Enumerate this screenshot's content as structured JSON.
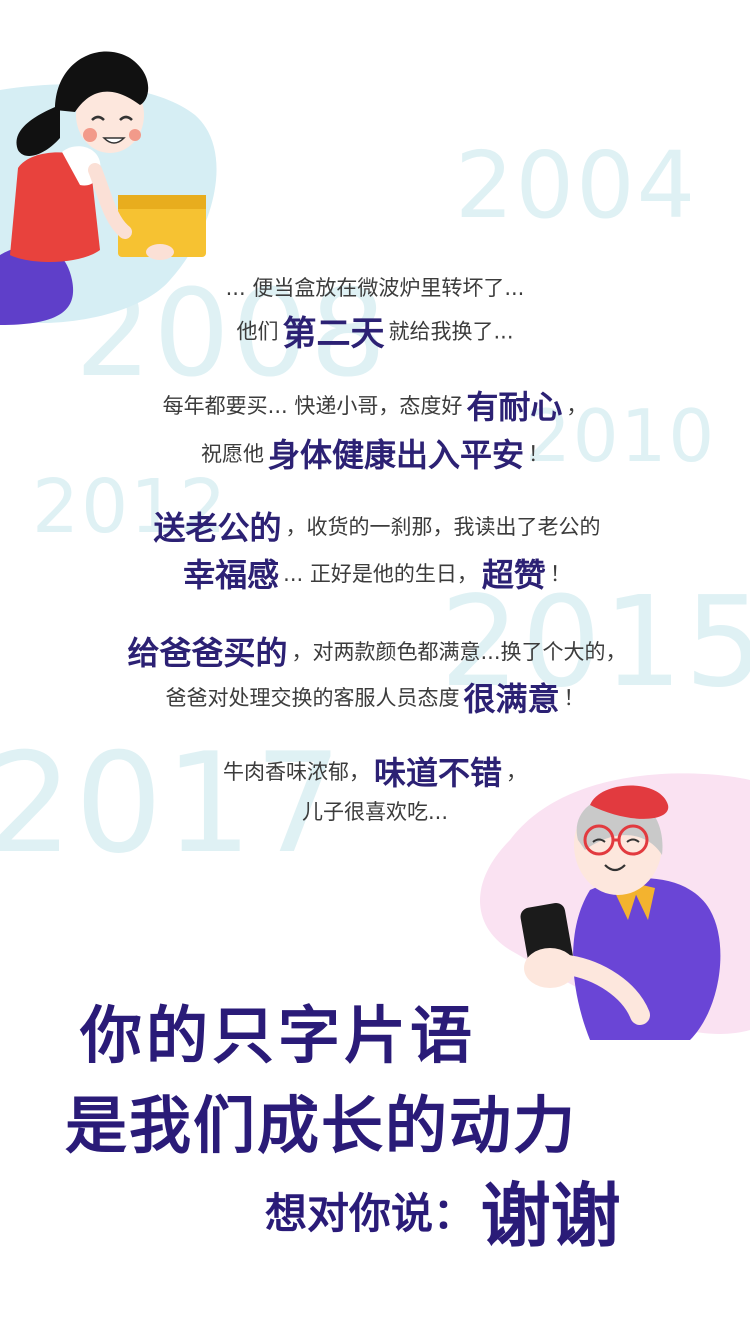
{
  "years": [
    "2004",
    "2008",
    "2010",
    "2012",
    "2015",
    "2017"
  ],
  "reviews": [
    {
      "segments": [
        {
          "text": "... 便当盒放在微波炉里转坏了...",
          "hl": false
        }
      ]
    },
    {
      "segments": [
        {
          "text": "他们",
          "hl": false
        },
        {
          "text": "第二天",
          "hl": true
        },
        {
          "text": "就给我换了...",
          "hl": false
        }
      ]
    },
    {
      "segments": [
        {
          "text": "每年都要买... 快递小哥，态度好",
          "hl": false
        },
        {
          "text": "有耐心",
          "hl": true
        },
        {
          "text": "，",
          "hl": false
        }
      ]
    },
    {
      "segments": [
        {
          "text": "祝愿他",
          "hl": false
        },
        {
          "text": "身体健康出入平安",
          "hl": true
        },
        {
          "text": "！",
          "hl": false
        }
      ]
    },
    {
      "segments": [
        {
          "text": "送老公的",
          "hl": true
        },
        {
          "text": "，收货的一刹那，我读出了老公的",
          "hl": false
        }
      ]
    },
    {
      "segments": [
        {
          "text": "幸福感",
          "hl": true
        },
        {
          "text": "... 正好是他的生日，",
          "hl": false
        },
        {
          "text": "超赞",
          "hl": true
        },
        {
          "text": "！",
          "hl": false
        }
      ]
    },
    {
      "segments": [
        {
          "text": "给爸爸买的",
          "hl": true
        },
        {
          "text": "，对两款颜色都满意...换了个大的，",
          "hl": false
        }
      ]
    },
    {
      "segments": [
        {
          "text": "爸爸对处理交换的客服人员态度",
          "hl": false
        },
        {
          "text": "很满意",
          "hl": true
        },
        {
          "text": "！",
          "hl": false
        }
      ]
    },
    {
      "segments": [
        {
          "text": "牛肉香味浓郁，",
          "hl": false
        },
        {
          "text": "味道不错",
          "hl": true
        },
        {
          "text": "，",
          "hl": false
        }
      ]
    },
    {
      "segments": [
        {
          "text": "儿子很喜欢吃...",
          "hl": false
        }
      ]
    }
  ],
  "thanks": {
    "line1": "你的只字片语",
    "line2": "是我们成长的动力",
    "line3_prefix": "想对你说：",
    "line3_emph": "谢谢"
  },
  "colors": {
    "year_text": "#dff1f4",
    "highlight": "#2c2174",
    "thanks": "#2a1b78",
    "woman_shirt": "#e8423d",
    "woman_skirt": "#5f3fc9",
    "box": "#f6c232",
    "grandma_beret": "#e23a3f",
    "grandma_shirt": "#6a45d6"
  },
  "icons": [
    "woman-holding-box-illustration",
    "grandma-with-phone-illustration"
  ]
}
